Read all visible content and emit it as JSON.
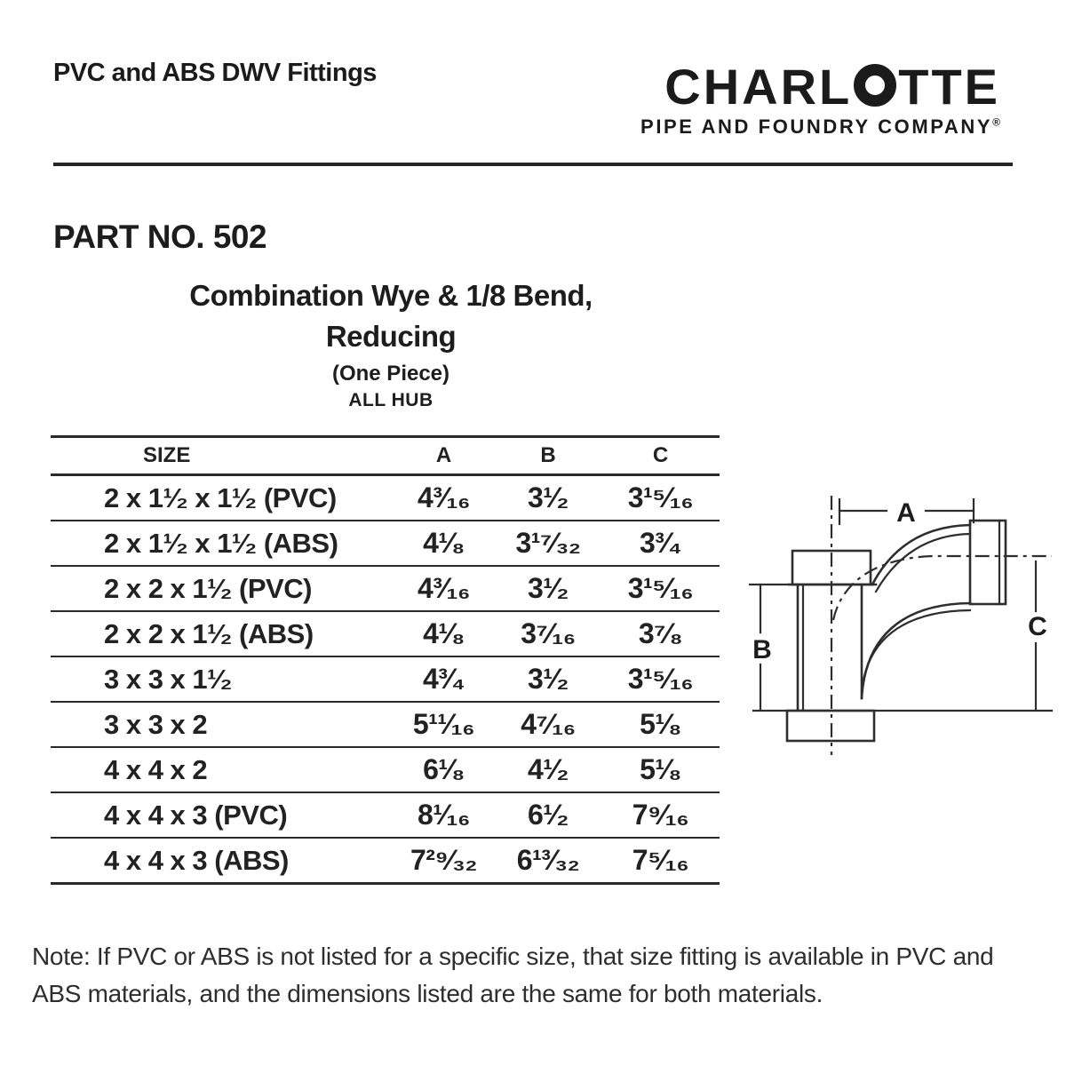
{
  "page": {
    "doc_title": "PVC and ABS DWV Fittings",
    "logo": {
      "brand_pre": "CHARL",
      "brand_post": "TTE",
      "subtitle": "PIPE AND FOUNDRY COMPANY",
      "registered": "®"
    },
    "part_no": "PART NO. 502",
    "product": {
      "title_line1": "Combination Wye & 1/8 Bend,",
      "title_line2": "Reducing",
      "subtitle1": "(One Piece)",
      "subtitle2": "ALL HUB"
    },
    "table": {
      "headers": [
        "SIZE",
        "A",
        "B",
        "C"
      ],
      "rows": [
        {
          "size": "2 x 1¹⁄₂ x 1¹⁄₂ (PVC)",
          "a": "4³⁄₁₆",
          "b": "3¹⁄₂",
          "c": "3¹⁵⁄₁₆"
        },
        {
          "size": "2 x 1¹⁄₂ x 1¹⁄₂ (ABS)",
          "a": "4¹⁄₈",
          "b": "3¹⁷⁄₃₂",
          "c": "3³⁄₄"
        },
        {
          "size": "2 x 2 x 1¹⁄₂ (PVC)",
          "a": "4³⁄₁₆",
          "b": "3¹⁄₂",
          "c": "3¹⁵⁄₁₆"
        },
        {
          "size": "2 x 2 x 1¹⁄₂ (ABS)",
          "a": "4¹⁄₈",
          "b": "3⁷⁄₁₆",
          "c": "3⁷⁄₈"
        },
        {
          "size": "3 x 3 x 1¹⁄₂",
          "a": "4³⁄₄",
          "b": "3¹⁄₂",
          "c": "3¹⁵⁄₁₆"
        },
        {
          "size": "3 x 3 x 2",
          "a": "5¹¹⁄₁₆",
          "b": "4⁷⁄₁₆",
          "c": "5¹⁄₈"
        },
        {
          "size": "4 x 4 x 2",
          "a": "6¹⁄₈",
          "b": "4¹⁄₂",
          "c": "5¹⁄₈"
        },
        {
          "size": "4 x 4 x 3 (PVC)",
          "a": "8¹⁄₁₆",
          "b": "6¹⁄₂",
          "c": "7⁹⁄₁₆"
        },
        {
          "size": "4 x 4 x 3 (ABS)",
          "a": "7²⁹⁄₃₂",
          "b": "6¹³⁄₃₂",
          "c": "7⁵⁄₁₆"
        }
      ]
    },
    "diagram": {
      "label_a": "A",
      "label_b": "B",
      "label_c": "C"
    },
    "note": "Note: If PVC or ABS is not listed for a specific size, that size fitting is available in PVC and ABS materials, and the dimensions listed are the same for both materials."
  },
  "colors": {
    "ink": "#1d1d1d",
    "line": "#2e2e2e",
    "background": "#ffffff"
  }
}
